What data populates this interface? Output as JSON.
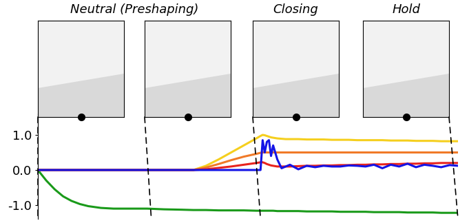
{
  "chart_data": {
    "type": "line",
    "phase_titles": [
      "Neutral (Preshaping)",
      "Closing",
      "Hold"
    ],
    "phase_bounds": [
      0,
      27,
      53,
      100
    ],
    "x": [
      0,
      2,
      4,
      6,
      8,
      10,
      12,
      15,
      18,
      22,
      26,
      30,
      34,
      37,
      40,
      43,
      46,
      49,
      52,
      53,
      53.5,
      54,
      54.5,
      55,
      55.5,
      56,
      57,
      58,
      59,
      60,
      62,
      64,
      66,
      68,
      70,
      72,
      74,
      76,
      78,
      80,
      82,
      84,
      86,
      88,
      90,
      92,
      94,
      96,
      98,
      100
    ],
    "series": [
      {
        "color": "#1a9a1a",
        "values": [
          0,
          -0.3,
          -0.55,
          -0.75,
          -0.88,
          -0.97,
          -1.03,
          -1.08,
          -1.1,
          -1.1,
          -1.1,
          -1.12,
          -1.13,
          -1.14,
          -1.14,
          -1.15,
          -1.15,
          -1.15,
          -1.16,
          -1.16,
          -1.16,
          -1.16,
          -1.16,
          -1.16,
          -1.16,
          -1.16,
          -1.17,
          -1.17,
          -1.17,
          -1.17,
          -1.17,
          -1.18,
          -1.18,
          -1.18,
          -1.18,
          -1.19,
          -1.19,
          -1.19,
          -1.19,
          -1.2,
          -1.2,
          -1.2,
          -1.2,
          -1.21,
          -1.21,
          -1.21,
          -1.21,
          -1.22,
          -1.22,
          -1.22
        ]
      },
      {
        "color": "#f5cf1e",
        "values": [
          0,
          0,
          0,
          0,
          0,
          0,
          0,
          0,
          0,
          0,
          0,
          0,
          0,
          0,
          0.12,
          0.3,
          0.5,
          0.7,
          0.9,
          0.97,
          1.0,
          0.99,
          0.97,
          0.95,
          0.93,
          0.92,
          0.9,
          0.89,
          0.88,
          0.88,
          0.88,
          0.87,
          0.87,
          0.87,
          0.86,
          0.86,
          0.86,
          0.85,
          0.85,
          0.85,
          0.85,
          0.84,
          0.84,
          0.84,
          0.83,
          0.83,
          0.83,
          0.82,
          0.82,
          0.82
        ]
      },
      {
        "color": "#f07a28",
        "values": [
          0,
          0,
          0,
          0,
          0,
          0,
          0,
          0,
          0,
          0,
          0,
          0,
          0,
          0,
          0.07,
          0.17,
          0.28,
          0.38,
          0.46,
          0.49,
          0.5,
          0.5,
          0.5,
          0.5,
          0.5,
          0.5,
          0.5,
          0.5,
          0.5,
          0.5,
          0.5,
          0.5,
          0.5,
          0.5,
          0.5,
          0.5,
          0.5,
          0.5,
          0.5,
          0.5,
          0.5,
          0.5,
          0.5,
          0.5,
          0.5,
          0.5,
          0.5,
          0.5,
          0.5,
          0.5
        ]
      },
      {
        "color": "#e8231e",
        "values": [
          0,
          0,
          0,
          0,
          0,
          0,
          0,
          0,
          0,
          0,
          0,
          0,
          0,
          0,
          0.02,
          0.06,
          0.1,
          0.15,
          0.2,
          0.22,
          0.22,
          0.2,
          0.17,
          0.15,
          0.13,
          0.12,
          0.1,
          0.1,
          0.1,
          0.1,
          0.11,
          0.12,
          0.12,
          0.13,
          0.13,
          0.14,
          0.14,
          0.15,
          0.15,
          0.16,
          0.16,
          0.17,
          0.17,
          0.18,
          0.18,
          0.19,
          0.19,
          0.2,
          0.2,
          0.2
        ]
      },
      {
        "color": "#1414e6",
        "values": [
          0,
          0,
          0,
          0,
          0,
          0,
          0,
          0,
          0,
          0,
          0,
          0,
          0,
          0,
          0,
          0,
          0,
          0,
          0,
          0,
          0.85,
          0.5,
          0.8,
          0.85,
          0.4,
          0.7,
          0.3,
          0.05,
          0.1,
          0.15,
          0.02,
          0.12,
          0.08,
          0.12,
          0.1,
          0.1,
          0.13,
          0.12,
          0.1,
          0.15,
          0.05,
          0.15,
          0.1,
          0.18,
          0.08,
          0.15,
          0.12,
          0.08,
          0.14,
          0.12
        ]
      }
    ],
    "xlim": [
      0,
      100
    ],
    "ylim": [
      -1.4,
      1.6
    ],
    "yticks": [
      {
        "value": 1,
        "label": "1.0"
      },
      {
        "value": 0,
        "label": "0.0"
      },
      {
        "value": -1,
        "label": "-1.0"
      }
    ],
    "tick_labels": "y"
  }
}
